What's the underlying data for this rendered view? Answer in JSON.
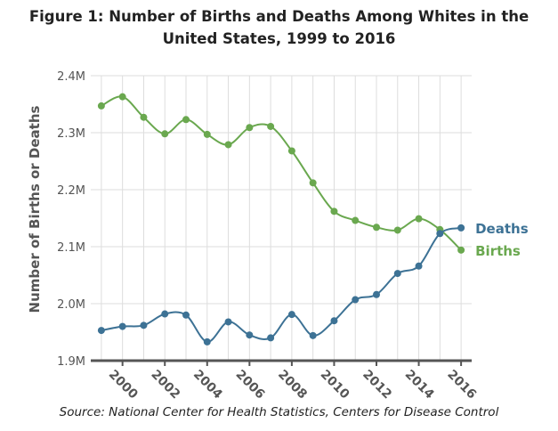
{
  "title": "Figure 1: Number of Births and Deaths Among Whites in the United States, 1999 to 2016",
  "source": "Source: National Center for Health Statistics, Centers for Disease Control",
  "colors": {
    "births": "#6aa84f",
    "deaths": "#3d7295",
    "grid": "#dddddd",
    "axis": "#555555"
  },
  "chart_data": {
    "type": "line",
    "ylabel": "Number of Births or Deaths",
    "xlabel": "",
    "x": [
      1999,
      2000,
      2001,
      2002,
      2003,
      2004,
      2005,
      2006,
      2007,
      2008,
      2009,
      2010,
      2011,
      2012,
      2013,
      2014,
      2015,
      2016
    ],
    "xticks": [
      2000,
      2002,
      2004,
      2006,
      2008,
      2010,
      2012,
      2014,
      2016
    ],
    "xtick_labels": [
      "2000",
      "2002",
      "2004",
      "2006",
      "2008",
      "2010",
      "2012",
      "2014",
      "2016"
    ],
    "xlim": [
      1998.5,
      2016.5
    ],
    "ylim": [
      1900000,
      2400000
    ],
    "yticks": [
      1900000,
      2000000,
      2100000,
      2200000,
      2300000,
      2400000
    ],
    "ytick_labels": [
      "1.9M",
      "2.0M",
      "2.1M",
      "2.2M",
      "2.3M",
      "2.4M"
    ],
    "grid": true,
    "series": [
      {
        "name": "Births",
        "color": "#6aa84f",
        "values": [
          2347000,
          2363000,
          2327000,
          2298000,
          2323000,
          2297000,
          2279000,
          2309000,
          2311000,
          2268000,
          2212000,
          2162000,
          2146000,
          2134000,
          2129000,
          2149000,
          2130000,
          2094000
        ]
      },
      {
        "name": "Deaths",
        "color": "#3d7295",
        "values": [
          1953000,
          1960000,
          1962000,
          1982000,
          1980000,
          1933000,
          1968000,
          1945000,
          1940000,
          1981000,
          1944000,
          1970000,
          2007000,
          2016000,
          2053000,
          2066000,
          2123000,
          2133000
        ]
      }
    ]
  }
}
